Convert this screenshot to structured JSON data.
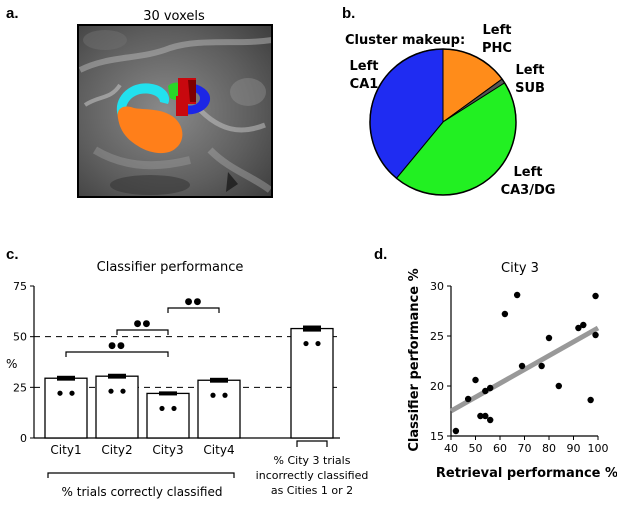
{
  "panel_a": {
    "letter": "a.",
    "title": "30 voxels",
    "mask_colors": {
      "cyan": "#22e1ee",
      "blue": "#1c26e6",
      "green": "#28d628",
      "orange": "#ff7f1a",
      "red": "#c8080e",
      "dark_red": "#7d0000"
    }
  },
  "panel_b": {
    "letter": "b.",
    "chart_data": {
      "type": "pie",
      "title": "Cluster makeup:",
      "slices": [
        {
          "line1": "Left",
          "line2": "PHC",
          "value": 0.15,
          "color": "#ff8c1a"
        },
        {
          "line1": "Left",
          "line2": "SUB",
          "value": 0.01,
          "color": "#555555"
        },
        {
          "line1": "Left",
          "line2": "CA3/DG",
          "value": 0.45,
          "color": "#22f022"
        },
        {
          "line1": "Left",
          "line2": "CA1",
          "value": 0.39,
          "color": "#1f2cf2"
        }
      ]
    }
  },
  "panel_c": {
    "letter": "c.",
    "chart_data": {
      "type": "bar",
      "title": "Classifier performance",
      "ylabel": "%",
      "ylim": [
        0,
        75
      ],
      "yticks": [
        "0",
        "25",
        "50",
        "75"
      ],
      "categories": [
        "City1",
        "City2",
        "City3",
        "City4"
      ],
      "values": [
        29.5,
        30.5,
        22.0,
        28.5
      ],
      "errors": [
        1.2,
        1.2,
        1.0,
        1.2
      ],
      "extra_bar": {
        "value": 54.0,
        "error": 1.5,
        "caption_lines": [
          "% City 3 trials",
          "incorrectly classified",
          "as Cities 1 or 2"
        ]
      },
      "reference_lines": [
        50,
        25
      ],
      "significance_marker": "●●",
      "bracket_caption": "% trials correctly classified"
    }
  },
  "panel_d": {
    "letter": "d.",
    "chart_data": {
      "type": "scatter",
      "title": "City 3",
      "xlabel": "Retrieval performance %",
      "ylabel": "Classifier performance %",
      "xlim": [
        40,
        100
      ],
      "ylim": [
        15,
        30
      ],
      "xticks": [
        "40",
        "50",
        "60",
        "70",
        "80",
        "90",
        "100"
      ],
      "yticks": [
        "15",
        "20",
        "25",
        "30"
      ],
      "points": [
        [
          42,
          15.5
        ],
        [
          47,
          18.7
        ],
        [
          50,
          20.6
        ],
        [
          52,
          17.0
        ],
        [
          54,
          17.0
        ],
        [
          54,
          19.5
        ],
        [
          56,
          16.6
        ],
        [
          56,
          19.8
        ],
        [
          62,
          27.2
        ],
        [
          67,
          29.1
        ],
        [
          69,
          22.0
        ],
        [
          77,
          22.0
        ],
        [
          80,
          24.8
        ],
        [
          84,
          20.0
        ],
        [
          92,
          25.8
        ],
        [
          94,
          26.1
        ],
        [
          97,
          18.6
        ],
        [
          99,
          29.0
        ],
        [
          99,
          25.1
        ]
      ],
      "fit_line": [
        [
          40,
          17.5
        ],
        [
          100,
          25.8
        ]
      ]
    }
  }
}
